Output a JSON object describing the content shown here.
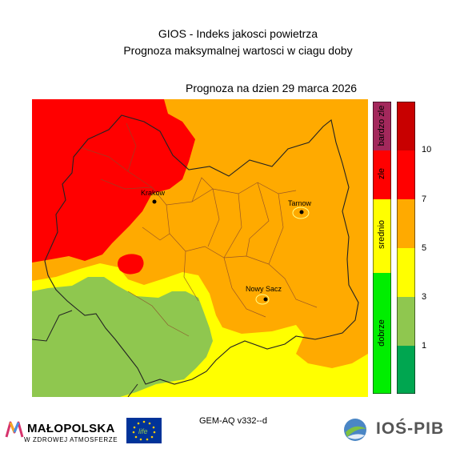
{
  "header": {
    "title_line1": "GIOS - Indeks jakosci powietrza",
    "title_line2": "Prognoza maksymalnej wartosci w ciagu doby",
    "forecast_date": "Prognoza na dzien  29 marca 2026"
  },
  "map": {
    "cities": [
      {
        "name": "Krakow"
      },
      {
        "name": "Tarnow"
      },
      {
        "name": "Nowy Sacz"
      }
    ],
    "zones": {
      "zle": "#ff0000",
      "srednio_high": "#ffaa00",
      "srednio_low": "#ffff00",
      "dobrze": "#8fc74f"
    }
  },
  "legend": {
    "categories": [
      {
        "label": "bardzo zle",
        "color": "#a3285c"
      },
      {
        "label": "zle",
        "color": "#ff0000"
      },
      {
        "label": "srednio",
        "color": "#ffff00"
      },
      {
        "label": "dobrze",
        "color": "#00ee00"
      }
    ],
    "scale": [
      {
        "color": "#c80000"
      },
      {
        "color": "#ff0000"
      },
      {
        "color": "#ffaa00"
      },
      {
        "color": "#ffff00"
      },
      {
        "color": "#8fc74f"
      },
      {
        "color": "#00a650"
      }
    ],
    "ticks": [
      "10",
      "7",
      "5",
      "3",
      "1"
    ]
  },
  "footer": {
    "model": "GEM-AQ v332--d",
    "malopolska_name": "MAŁOPOLSKA",
    "malopolska_slogan": "W ZDROWEJ ATMOSFERZE",
    "eu_life_text": "life",
    "ios_pib_name": "IOŚ-PIB"
  }
}
